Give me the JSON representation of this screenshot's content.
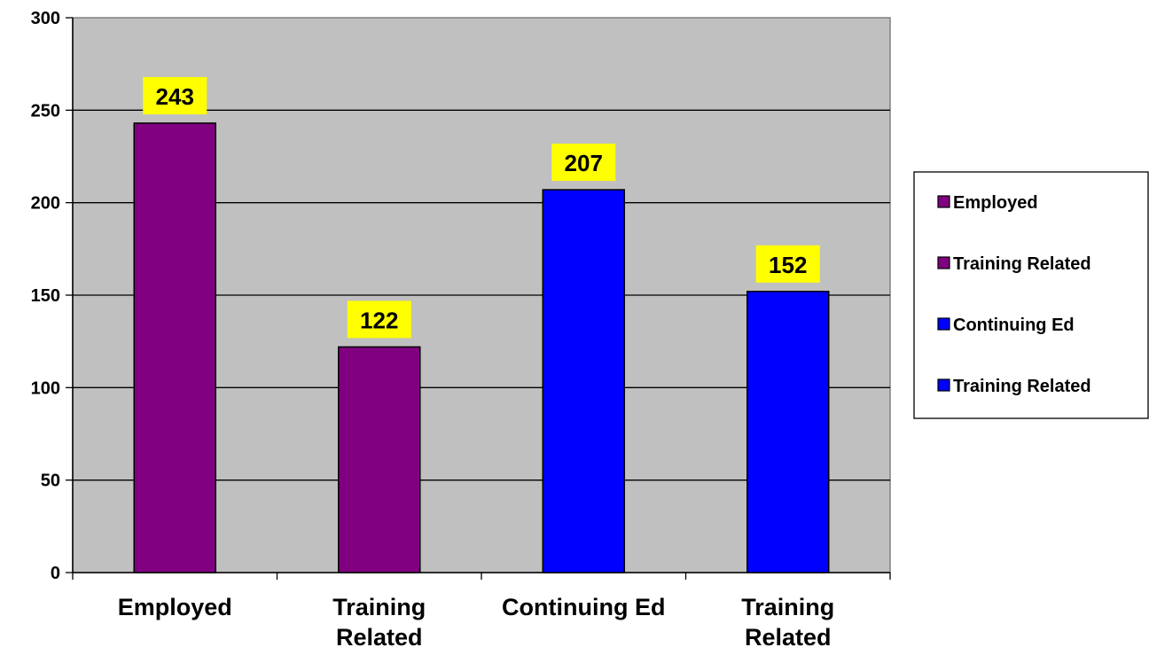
{
  "chart_data": {
    "type": "bar",
    "categories": [
      [
        "Employed"
      ],
      [
        "Training",
        "Related"
      ],
      [
        "Continuing Ed"
      ],
      [
        "Training",
        "Related"
      ]
    ],
    "values": [
      243,
      122,
      207,
      152
    ],
    "bar_colors": [
      "#800080",
      "#800080",
      "#0000ff",
      "#0000ff"
    ],
    "data_labels": [
      "243",
      "122",
      "207",
      "152"
    ],
    "ylim": [
      0,
      300
    ],
    "yticks": [
      0,
      50,
      100,
      150,
      200,
      250,
      300
    ],
    "ytick_labels": [
      "0",
      "50",
      "100",
      "150",
      "200",
      "250",
      "300"
    ],
    "grid": true,
    "legend_position": "right",
    "legend": [
      {
        "label": "Employed",
        "color": "#800080"
      },
      {
        "label": "Training Related",
        "color": "#800080"
      },
      {
        "label": "Continuing Ed",
        "color": "#0000ff"
      },
      {
        "label": "Training Related",
        "color": "#0000ff"
      }
    ],
    "plot_background": "#c0c0c0",
    "data_label_background": "#ffff00"
  }
}
